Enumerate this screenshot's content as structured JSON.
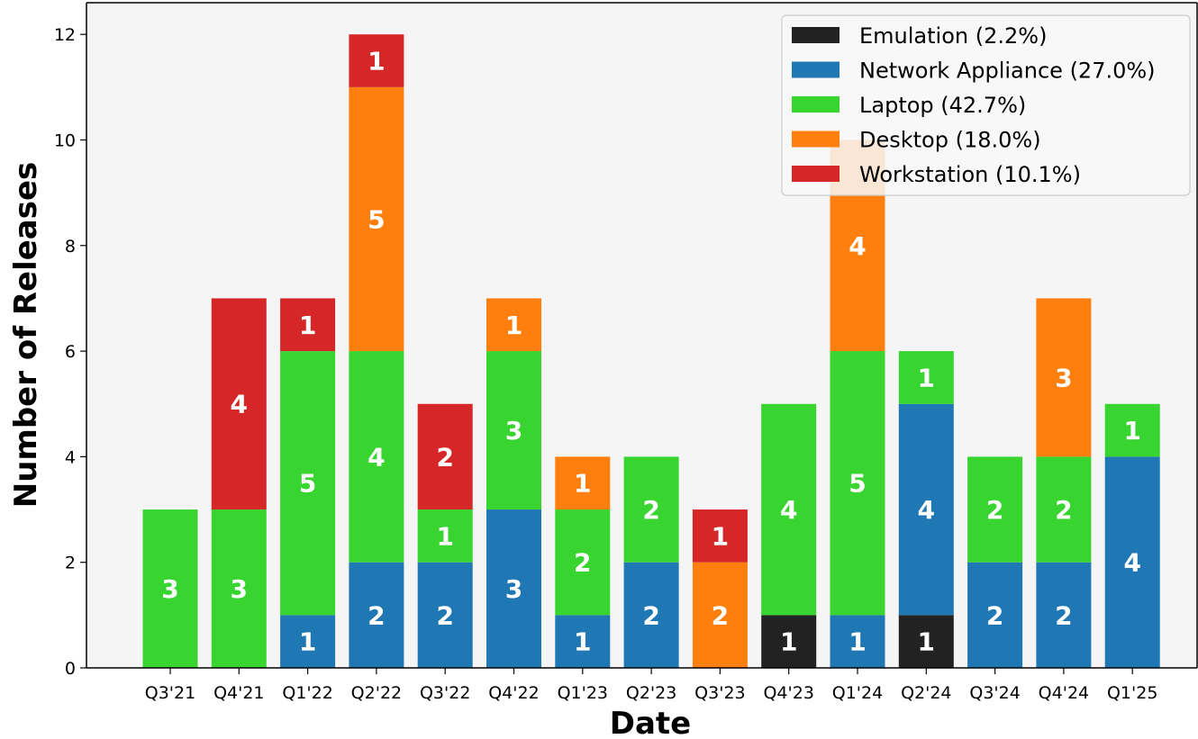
{
  "chart_data": {
    "type": "bar",
    "stacked": true,
    "xlabel": "Date",
    "ylabel": "Number of Releases",
    "ylim": [
      0,
      12.6
    ],
    "yticks": [
      0,
      2,
      4,
      6,
      8,
      10,
      12
    ],
    "categories": [
      "Q3'21",
      "Q4'21",
      "Q1'22",
      "Q2'22",
      "Q3'22",
      "Q4'22",
      "Q1'23",
      "Q2'23",
      "Q3'23",
      "Q4'23",
      "Q1'24",
      "Q2'24",
      "Q3'24",
      "Q4'24",
      "Q1'25"
    ],
    "legend_position": "top-right",
    "grid": false,
    "series": [
      {
        "name": "Emulation (2.2%)",
        "color": "#222222",
        "values": [
          0,
          0,
          0,
          0,
          0,
          0,
          0,
          0,
          0,
          1,
          0,
          1,
          0,
          0,
          0
        ]
      },
      {
        "name": "Network Appliance (27.0%)",
        "color": "#1f77b4",
        "values": [
          0,
          0,
          1,
          2,
          2,
          3,
          1,
          2,
          0,
          0,
          1,
          4,
          2,
          2,
          4
        ]
      },
      {
        "name": "Laptop (42.7%)",
        "color": "#38d430",
        "values": [
          3,
          3,
          5,
          4,
          1,
          3,
          2,
          2,
          0,
          4,
          5,
          1,
          2,
          2,
          1
        ]
      },
      {
        "name": "Desktop (18.0%)",
        "color": "#ff7f0e",
        "values": [
          0,
          0,
          0,
          5,
          0,
          1,
          1,
          0,
          2,
          0,
          4,
          0,
          0,
          3,
          0
        ]
      },
      {
        "name": "Workstation (10.1%)",
        "color": "#d62728",
        "values": [
          0,
          4,
          1,
          1,
          2,
          0,
          0,
          0,
          1,
          0,
          0,
          0,
          0,
          0,
          0
        ]
      }
    ]
  }
}
